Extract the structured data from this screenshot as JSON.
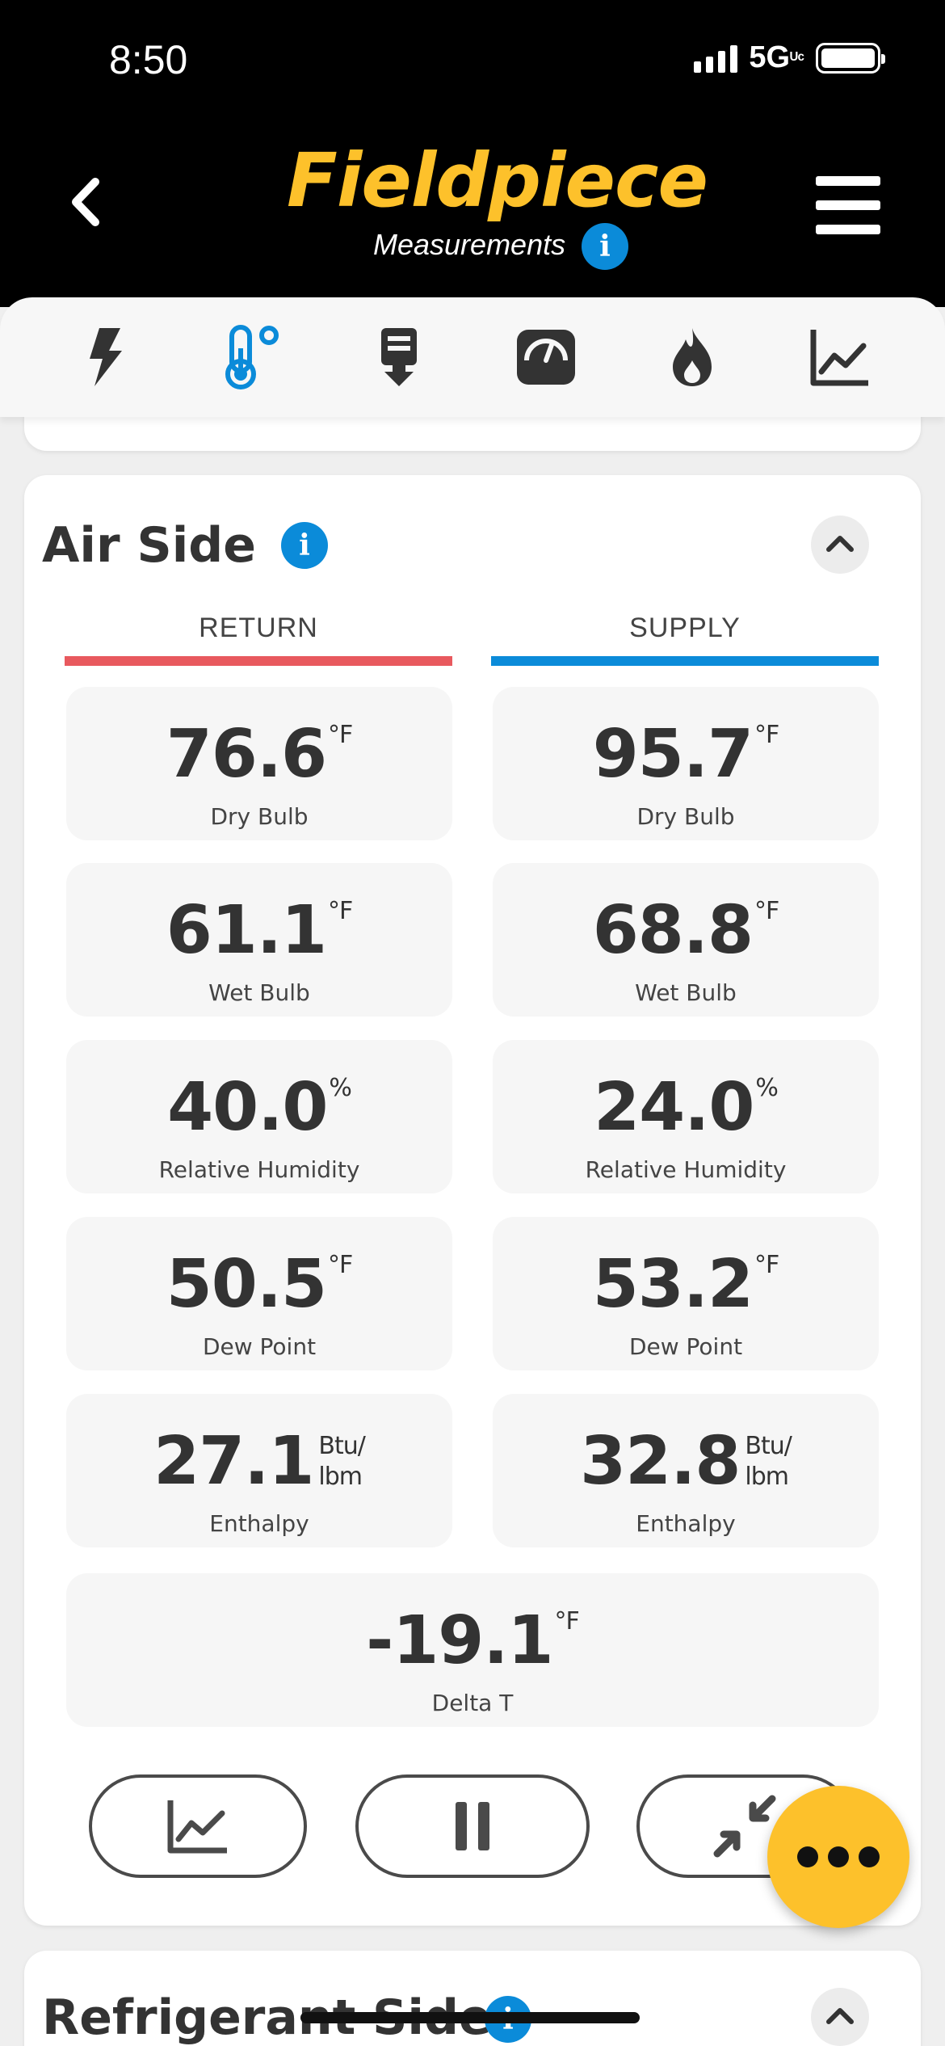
{
  "status": {
    "time": "8:50",
    "network": "5G UC"
  },
  "header": {
    "brand": "Fieldpiece",
    "subtitle": "Measurements"
  },
  "toolbar": {
    "icons": [
      "lightning-icon",
      "thermometer-icon",
      "download-icon",
      "gauge-icon",
      "flame-icon",
      "chart-icon"
    ],
    "active_index": 1
  },
  "air_side": {
    "title": "Air Side",
    "columns": {
      "return": "RETURN",
      "supply": "SUPPLY"
    },
    "colors": {
      "return": "#e8595e",
      "supply": "#0b8bd9"
    },
    "return": {
      "dry_bulb": {
        "value": "76.6",
        "unit": "°F",
        "label": "Dry Bulb"
      },
      "wet_bulb": {
        "value": "61.1",
        "unit": "°F",
        "label": "Wet Bulb"
      },
      "rh": {
        "value": "40.0",
        "unit": "%",
        "label": "Relative Humidity"
      },
      "dew_point": {
        "value": "50.5",
        "unit": "°F",
        "label": "Dew Point"
      },
      "enthalpy": {
        "value": "27.1",
        "unit_top": "Btu/",
        "unit_bottom": "lbm",
        "label": "Enthalpy"
      }
    },
    "supply": {
      "dry_bulb": {
        "value": "95.7",
        "unit": "°F",
        "label": "Dry Bulb"
      },
      "wet_bulb": {
        "value": "68.8",
        "unit": "°F",
        "label": "Wet Bulb"
      },
      "rh": {
        "value": "24.0",
        "unit": "%",
        "label": "Relative Humidity"
      },
      "dew_point": {
        "value": "53.2",
        "unit": "°F",
        "label": "Dew Point"
      },
      "enthalpy": {
        "value": "32.8",
        "unit_top": "Btu/",
        "unit_bottom": "lbm",
        "label": "Enthalpy"
      }
    },
    "delta_t": {
      "value": "-19.1",
      "unit": "°F",
      "label": "Delta T"
    }
  },
  "refrigerant_side": {
    "title": "Refrigerant Side"
  },
  "accent": "#fdc12b"
}
